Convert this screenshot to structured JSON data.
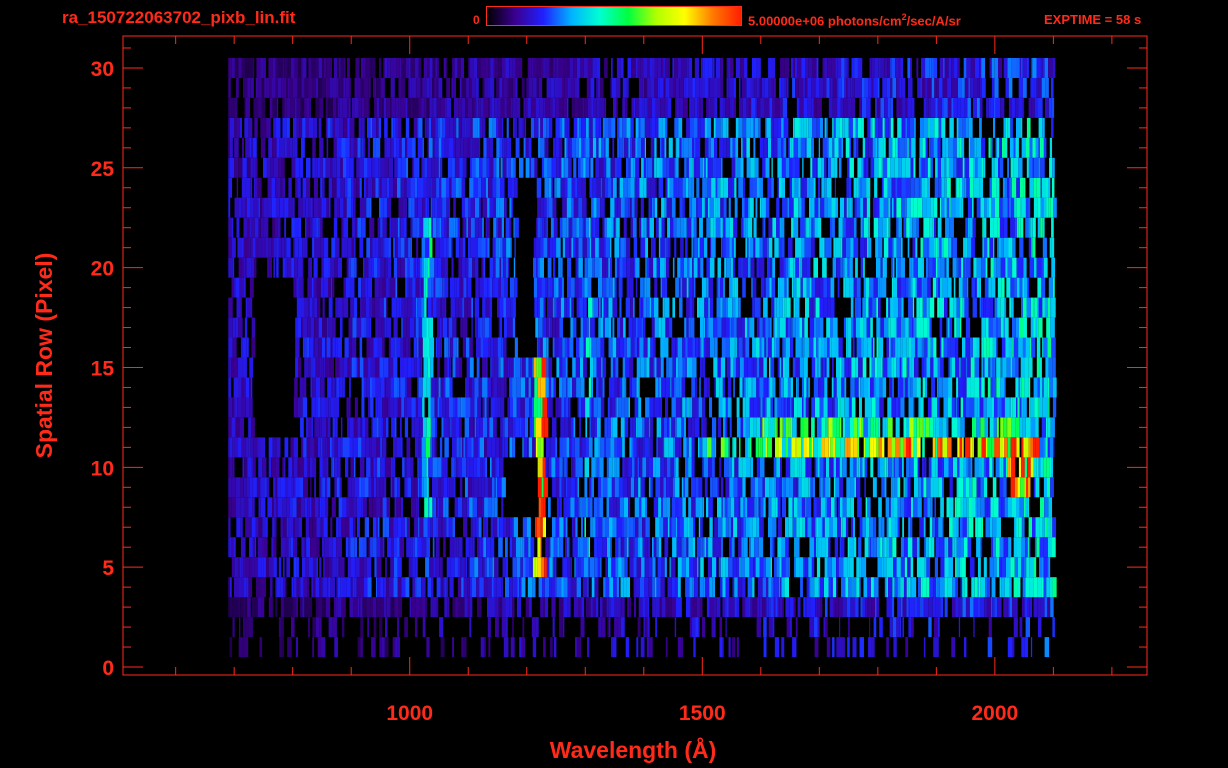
{
  "header": {
    "file_title": "ra_150722063702_pixb_lin.fit",
    "colorbar_min": "0",
    "colorbar_max_prefix": "5.00000e+06 photons/cm",
    "colorbar_max_sup": "2",
    "colorbar_max_suffix": "/sec/A/sr",
    "exptime": "EXPTIME = 58 s"
  },
  "colors": {
    "axis": "#ff2a1a",
    "background": "#000000",
    "colormap": [
      "#000000",
      "#3a0090",
      "#2020ff",
      "#00b4ff",
      "#00ffd0",
      "#00ff40",
      "#b0ff00",
      "#ffff00",
      "#ff7a00",
      "#ff1e00"
    ]
  },
  "chart_data": {
    "type": "heatmap",
    "xlabel": "Wavelength (Å)",
    "ylabel": "Spatial Row (Pixel)",
    "xlim": [
      510,
      2260
    ],
    "ylim": [
      -0.4,
      31.6
    ],
    "x_ticks": [
      1000,
      1500,
      2000
    ],
    "y_ticks": [
      0,
      5,
      10,
      15,
      20,
      25,
      30
    ],
    "x_minor_step": 100,
    "y_minor_step": 1,
    "x_range_of_data": [
      690,
      2100
    ],
    "rows": [
      1,
      2,
      3,
      4,
      5,
      6,
      7,
      8,
      9,
      10,
      11,
      12,
      13,
      14,
      15,
      16,
      17,
      18,
      19,
      20,
      21,
      22,
      23,
      24,
      25,
      26,
      27,
      28,
      29,
      30
    ],
    "colorbar": {
      "min": 0,
      "max": 5000000,
      "unit": "photons/cm2/sec/A/sr"
    },
    "features": [
      {
        "name": "bright-row",
        "row": 11,
        "x": [
          1500,
          2070
        ],
        "peak_norm": 0.95,
        "peak_at": 1990
      },
      {
        "name": "lyman-alpha-band",
        "x": [
          1210,
          1230
        ],
        "rows": [
          5,
          15
        ],
        "peak_norm": 0.9
      },
      {
        "name": "airglow-1304",
        "x": [
          1298,
          1308
        ],
        "rows": [
          6,
          22
        ],
        "peak_norm": 0.35
      },
      {
        "name": "oxygen-1026",
        "x": [
          1020,
          1035
        ],
        "rows": [
          8,
          22
        ],
        "peak_norm": 0.4
      }
    ]
  }
}
